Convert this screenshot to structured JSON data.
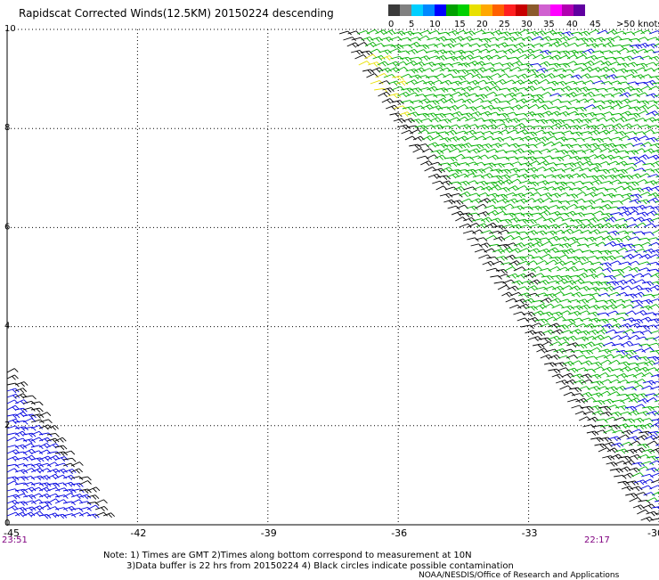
{
  "title": "Rapidscat Corrected Winds(12.5KM) 20150224 descending",
  "legend": {
    "colors": [
      "#3a3a3a",
      "#808080",
      "#00cfff",
      "#0088ff",
      "#0000ff",
      "#00a000",
      "#00d000",
      "#e8e000",
      "#ffa800",
      "#ff6000",
      "#ff2020",
      "#c80000",
      "#8b5a2b",
      "#d060d0",
      "#ff00ff",
      "#b000b0",
      "#6000a0"
    ],
    "labels": [
      "0",
      "5",
      "10",
      "15",
      "20",
      "25",
      "30",
      "35",
      "40",
      "45",
      ">50 knots"
    ]
  },
  "axes": {
    "x_ticks": [
      "-45",
      "-42",
      "-39",
      "-36",
      "-33",
      "-30"
    ],
    "y_ticks": [
      "0",
      "2",
      "4",
      "6",
      "8",
      "10"
    ]
  },
  "times": {
    "left": "23:51",
    "right": "22:17"
  },
  "notes": {
    "line1": "Note: 1) Times are GMT 2)Times along bottom correspond to measurement at 10N",
    "line2": "3)Data buffer is 22 hrs from 20150224 4) Black circles indicate possible contamination",
    "line3": "NOAA/NESDIS/Office of Research and Applications"
  },
  "map_data": {
    "lon_range": [
      -45,
      -30
    ],
    "lat_range": [
      0,
      10
    ],
    "grid": true,
    "colors": {
      "black": "#000000",
      "green": "#00b000",
      "blue": "#0000e0",
      "yellow": "#e8e000"
    }
  }
}
